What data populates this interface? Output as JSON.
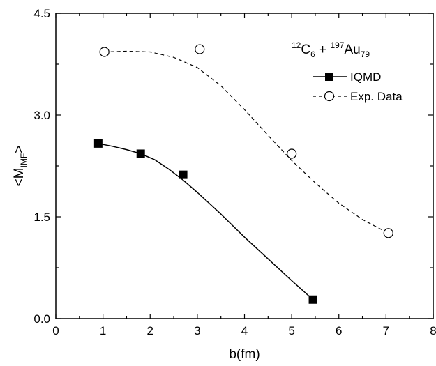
{
  "chart_data": {
    "type": "scatter",
    "xlabel": "b(fm)",
    "ylabel": {
      "main": "<M",
      "sub": "IMF",
      "close": ">"
    },
    "xlim": [
      0,
      8
    ],
    "ylim": [
      0,
      4.5
    ],
    "xticks": [
      "0",
      "1",
      "2",
      "3",
      "4",
      "5",
      "6",
      "7",
      "8"
    ],
    "yticks": [
      "0.0",
      "1.5",
      "3.0",
      "4.5"
    ],
    "grid": false,
    "legend_position": "top-right",
    "annotation": {
      "sup1": "12",
      "el1": "C",
      "sub1": "6",
      "plus": " + ",
      "sup2": "197",
      "el2": "Au",
      "sub2": "79"
    },
    "series": [
      {
        "name": "IQMD",
        "marker": "filled-square",
        "line": "solid",
        "x": [
          0.9,
          1.8,
          2.7,
          5.45
        ],
        "y": [
          2.58,
          2.43,
          2.12,
          0.28
        ],
        "curve_x": [
          0.9,
          1.2,
          1.5,
          1.8,
          2.1,
          2.4,
          2.7,
          3.0,
          3.5,
          4.0,
          4.5,
          5.0,
          5.45
        ],
        "curve_y": [
          2.58,
          2.54,
          2.49,
          2.43,
          2.34,
          2.2,
          2.04,
          1.86,
          1.54,
          1.2,
          0.88,
          0.56,
          0.28
        ]
      },
      {
        "name": "Exp. Data",
        "marker": "open-circle",
        "line": "dashed",
        "x": [
          1.03,
          3.05,
          5.0,
          7.05
        ],
        "y": [
          3.93,
          3.97,
          2.43,
          1.26
        ],
        "curve_x": [
          1.03,
          1.5,
          2.0,
          2.5,
          3.0,
          3.5,
          4.0,
          4.5,
          5.0,
          5.5,
          6.0,
          6.5,
          7.05
        ],
        "curve_y": [
          3.93,
          3.94,
          3.93,
          3.85,
          3.7,
          3.43,
          3.08,
          2.7,
          2.33,
          2.0,
          1.7,
          1.46,
          1.26
        ]
      }
    ]
  }
}
